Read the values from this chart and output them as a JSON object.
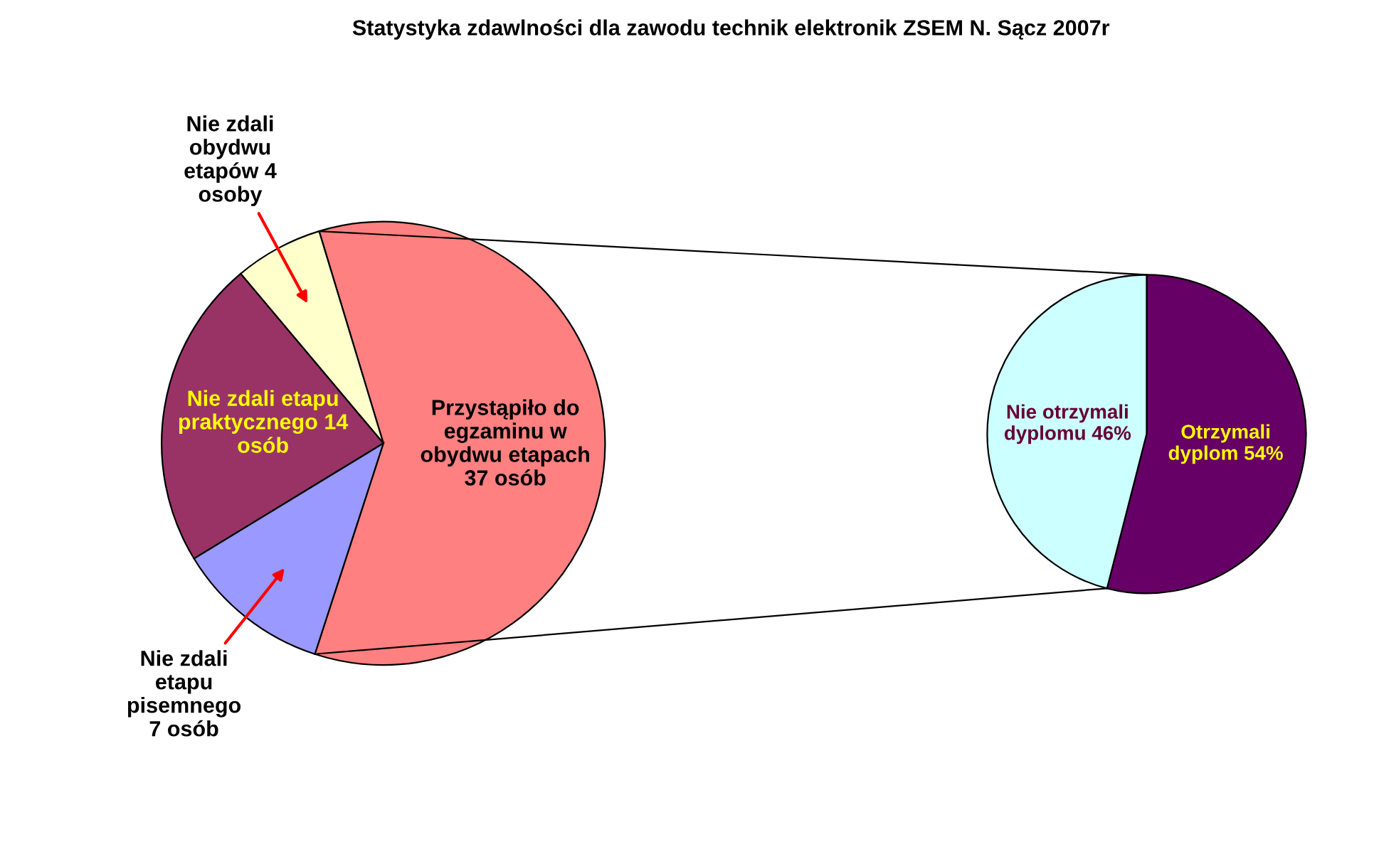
{
  "chart_data": [
    {
      "type": "pie",
      "title": "Statystyka zdawlności dla zawodu technik elektronik ZSEM N. Sącz 2007r",
      "categories": [
        "Przystąpiło do egzaminu w obydwu etapach 37 osób",
        "Nie zdali obydwu etapów 4 osoby",
        "Nie zdali etapu praktycznego 14 osób",
        "Nie zdali etapu pisemnego 7 osób"
      ],
      "values": [
        37,
        4,
        14,
        7
      ],
      "colors": [
        "#ff8080",
        "#ffffcc",
        "#993366",
        "#9999ff"
      ]
    },
    {
      "type": "pie",
      "categories": [
        "Otrzymali dyplom 54%",
        "Nie otrzymali dyplomu 46%"
      ],
      "values": [
        54,
        46
      ],
      "colors": [
        "#660066",
        "#ccffff"
      ]
    }
  ]
}
